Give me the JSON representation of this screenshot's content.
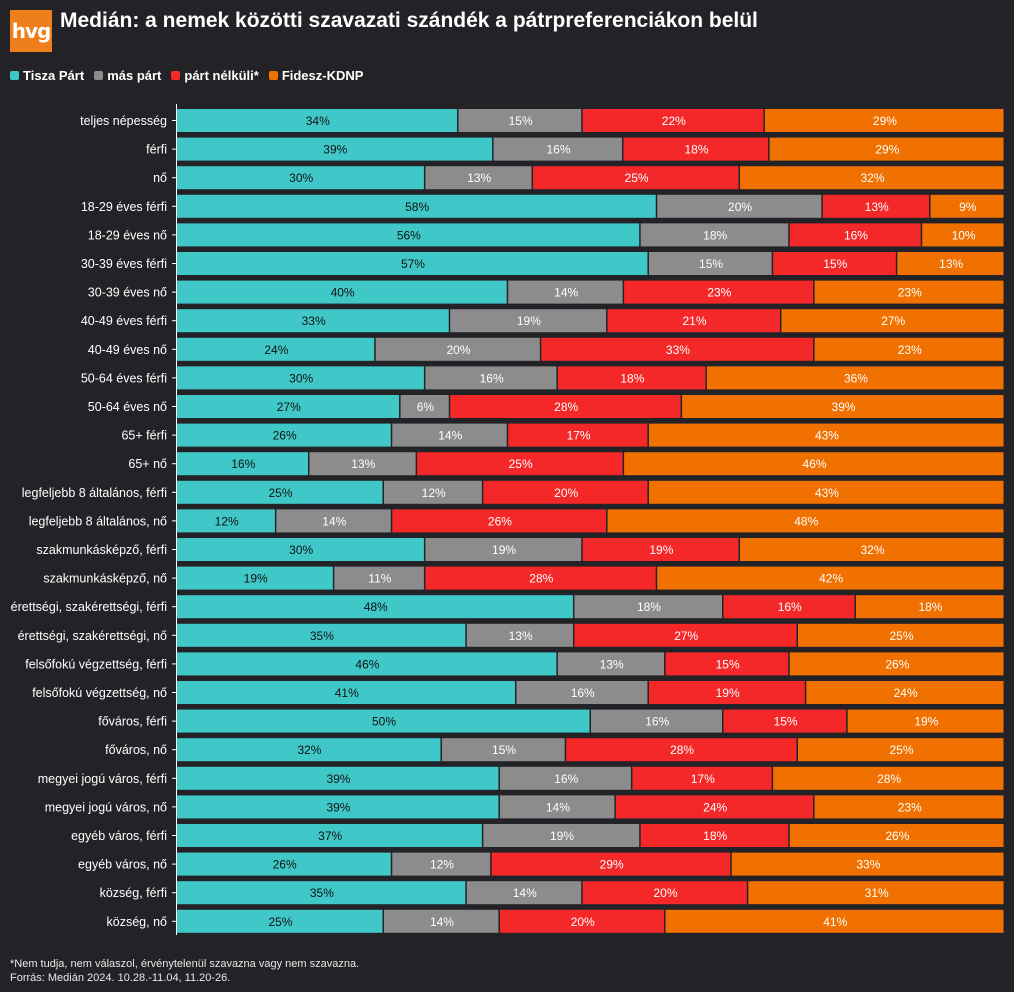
{
  "header": {
    "logo_text": "hvg",
    "title": "Medián: a nemek közötti szavazati szándék a pátrpreferenciákon belül"
  },
  "footer": {
    "note": "*Nem tudja, nem válaszol, érvénytelenül szavazna vagy nem szavazna.",
    "source": "Forrás: Medián 2024. 10.28.-11.04, 11.20-26."
  },
  "colors": {
    "background": "#232327",
    "text": "#ffffff"
  },
  "chart_data": {
    "type": "bar",
    "orientation": "horizontal",
    "stacked": true,
    "legend_position": "top-left",
    "grid": false,
    "xlim": [
      0,
      100
    ],
    "categories": [
      "teljes népesség",
      "férfi",
      "nő",
      "18-29 éves férfi",
      "18-29 éves nő",
      "30-39 éves férfi",
      "30-39 éves nő",
      "40-49 éves férfi",
      "40-49 éves nő",
      "50-64 éves férfi",
      "50-64 éves nő",
      "65+ férfi",
      "65+ nő",
      "legfeljebb 8 általános, férfi",
      "legfeljebb 8 általános, nő",
      "szakmunkásképző, férfi",
      "szakmunkásképző, nő",
      "érettségi, szakérettségi, férfi",
      "érettségi, szakérettségi, nő",
      "felsőfokú végzettség, férfi",
      "felsőfokú végzettség, nő",
      "főváros, férfi",
      "főváros, nő",
      "megyei jogú város, férfi",
      "megyei jogú város, nő",
      "egyéb város, férfi",
      "egyéb város, nő",
      "község, férfi",
      "község, nő"
    ],
    "series": [
      {
        "name": "Tisza Párt",
        "color": "#40c8c8",
        "values": [
          34,
          39,
          30,
          58,
          56,
          57,
          40,
          33,
          24,
          30,
          27,
          26,
          16,
          25,
          12,
          30,
          19,
          48,
          35,
          46,
          41,
          50,
          32,
          39,
          39,
          37,
          26,
          35,
          25
        ]
      },
      {
        "name": "más párt",
        "color": "#8c8c8c",
        "values": [
          15,
          16,
          13,
          20,
          18,
          15,
          14,
          19,
          20,
          16,
          6,
          14,
          13,
          12,
          14,
          19,
          11,
          18,
          13,
          13,
          16,
          16,
          15,
          16,
          14,
          19,
          12,
          14,
          14
        ]
      },
      {
        "name": "párt nélküli*",
        "color": "#f42828",
        "values": [
          22,
          18,
          25,
          13,
          16,
          15,
          23,
          21,
          33,
          18,
          28,
          17,
          25,
          20,
          26,
          19,
          28,
          16,
          27,
          15,
          19,
          15,
          28,
          17,
          24,
          18,
          29,
          20,
          20
        ]
      },
      {
        "name": "Fidesz-KDNP",
        "color": "#f07000",
        "values": [
          29,
          29,
          32,
          9,
          10,
          13,
          23,
          27,
          23,
          36,
          39,
          43,
          46,
          43,
          48,
          32,
          42,
          18,
          25,
          26,
          24,
          19,
          25,
          28,
          23,
          26,
          33,
          31,
          41
        ]
      }
    ]
  }
}
